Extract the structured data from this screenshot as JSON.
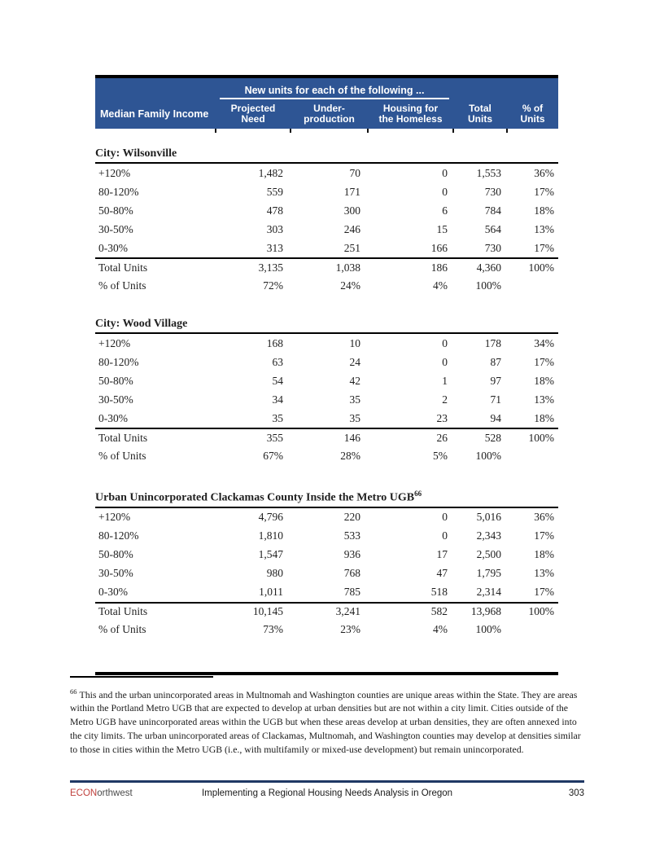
{
  "colors": {
    "header_bg": "#2e5594",
    "footer_rule": "#1f3864",
    "brand_red": "#c0413d",
    "rule_black": "#000000"
  },
  "table": {
    "header": {
      "span_label": "New units for each of the following ...",
      "columns": [
        "Median Family Income",
        "Projected\nNeed",
        "Under-\nproduction",
        "Housing for\nthe Homeless",
        "Total\nUnits",
        "% of\nUnits"
      ]
    }
  },
  "sections": [
    {
      "title": "City: Wilsonville",
      "rows": [
        {
          "label": "+120%",
          "values": [
            "1,482",
            "70",
            "0",
            "1,553",
            "36%"
          ]
        },
        {
          "label": "80-120%",
          "values": [
            "559",
            "171",
            "0",
            "730",
            "17%"
          ]
        },
        {
          "label": "50-80%",
          "values": [
            "478",
            "300",
            "6",
            "784",
            "18%"
          ]
        },
        {
          "label": "30-50%",
          "values": [
            "303",
            "246",
            "15",
            "564",
            "13%"
          ]
        },
        {
          "label": "0-30%",
          "values": [
            "313",
            "251",
            "166",
            "730",
            "17%"
          ]
        }
      ],
      "totals": [
        {
          "label": "Total Units",
          "values": [
            "3,135",
            "1,038",
            "186",
            "4,360",
            "100%"
          ]
        },
        {
          "label": "% of Units",
          "values": [
            "72%",
            "24%",
            "4%",
            "100%",
            ""
          ]
        }
      ]
    },
    {
      "title": "City: Wood Village",
      "rows": [
        {
          "label": "+120%",
          "values": [
            "168",
            "10",
            "0",
            "178",
            "34%"
          ]
        },
        {
          "label": "80-120%",
          "values": [
            "63",
            "24",
            "0",
            "87",
            "17%"
          ]
        },
        {
          "label": "50-80%",
          "values": [
            "54",
            "42",
            "1",
            "97",
            "18%"
          ]
        },
        {
          "label": "30-50%",
          "values": [
            "34",
            "35",
            "2",
            "71",
            "13%"
          ]
        },
        {
          "label": "0-30%",
          "values": [
            "35",
            "35",
            "23",
            "94",
            "18%"
          ]
        }
      ],
      "totals": [
        {
          "label": "Total Units",
          "values": [
            "355",
            "146",
            "26",
            "528",
            "100%"
          ]
        },
        {
          "label": "% of Units",
          "values": [
            "67%",
            "28%",
            "5%",
            "100%",
            ""
          ]
        }
      ]
    },
    {
      "title": "Urban Unincorporated Clackamas County Inside the Metro UGB",
      "title_sup": "66",
      "rows": [
        {
          "label": "+120%",
          "values": [
            "4,796",
            "220",
            "0",
            "5,016",
            "36%"
          ]
        },
        {
          "label": "80-120%",
          "values": [
            "1,810",
            "533",
            "0",
            "2,343",
            "17%"
          ]
        },
        {
          "label": "50-80%",
          "values": [
            "1,547",
            "936",
            "17",
            "2,500",
            "18%"
          ]
        },
        {
          "label": "30-50%",
          "values": [
            "980",
            "768",
            "47",
            "1,795",
            "13%"
          ]
        },
        {
          "label": "0-30%",
          "values": [
            "1,011",
            "785",
            "518",
            "2,314",
            "17%"
          ]
        }
      ],
      "totals": [
        {
          "label": "Total Units",
          "values": [
            "10,145",
            "3,241",
            "582",
            "13,968",
            "100%"
          ]
        },
        {
          "label": "% of Units",
          "values": [
            "73%",
            "23%",
            "4%",
            "100%",
            ""
          ]
        }
      ]
    }
  ],
  "footnote": {
    "marker": "66",
    "text": "This and the urban unincorporated areas in Multnomah and Washington counties are unique areas within the State. They are areas within the Portland Metro UGB that are expected to develop at urban densities but are not within a city limit. Cities outside of the Metro UGB have unincorporated areas within the UGB but when these areas develop at urban densities, they are often annexed into the city limits. The urban unincorporated areas of Clackamas, Multnomah, and Washington counties may develop at densities similar to those in cities within the Metro UGB (i.e., with multifamily or mixed-use development) but remain unincorporated."
  },
  "footer": {
    "brand_red": "ECON",
    "brand_rest": "orthwest",
    "title": "Implementing a Regional Housing Needs Analysis in Oregon",
    "page_number": "303"
  }
}
